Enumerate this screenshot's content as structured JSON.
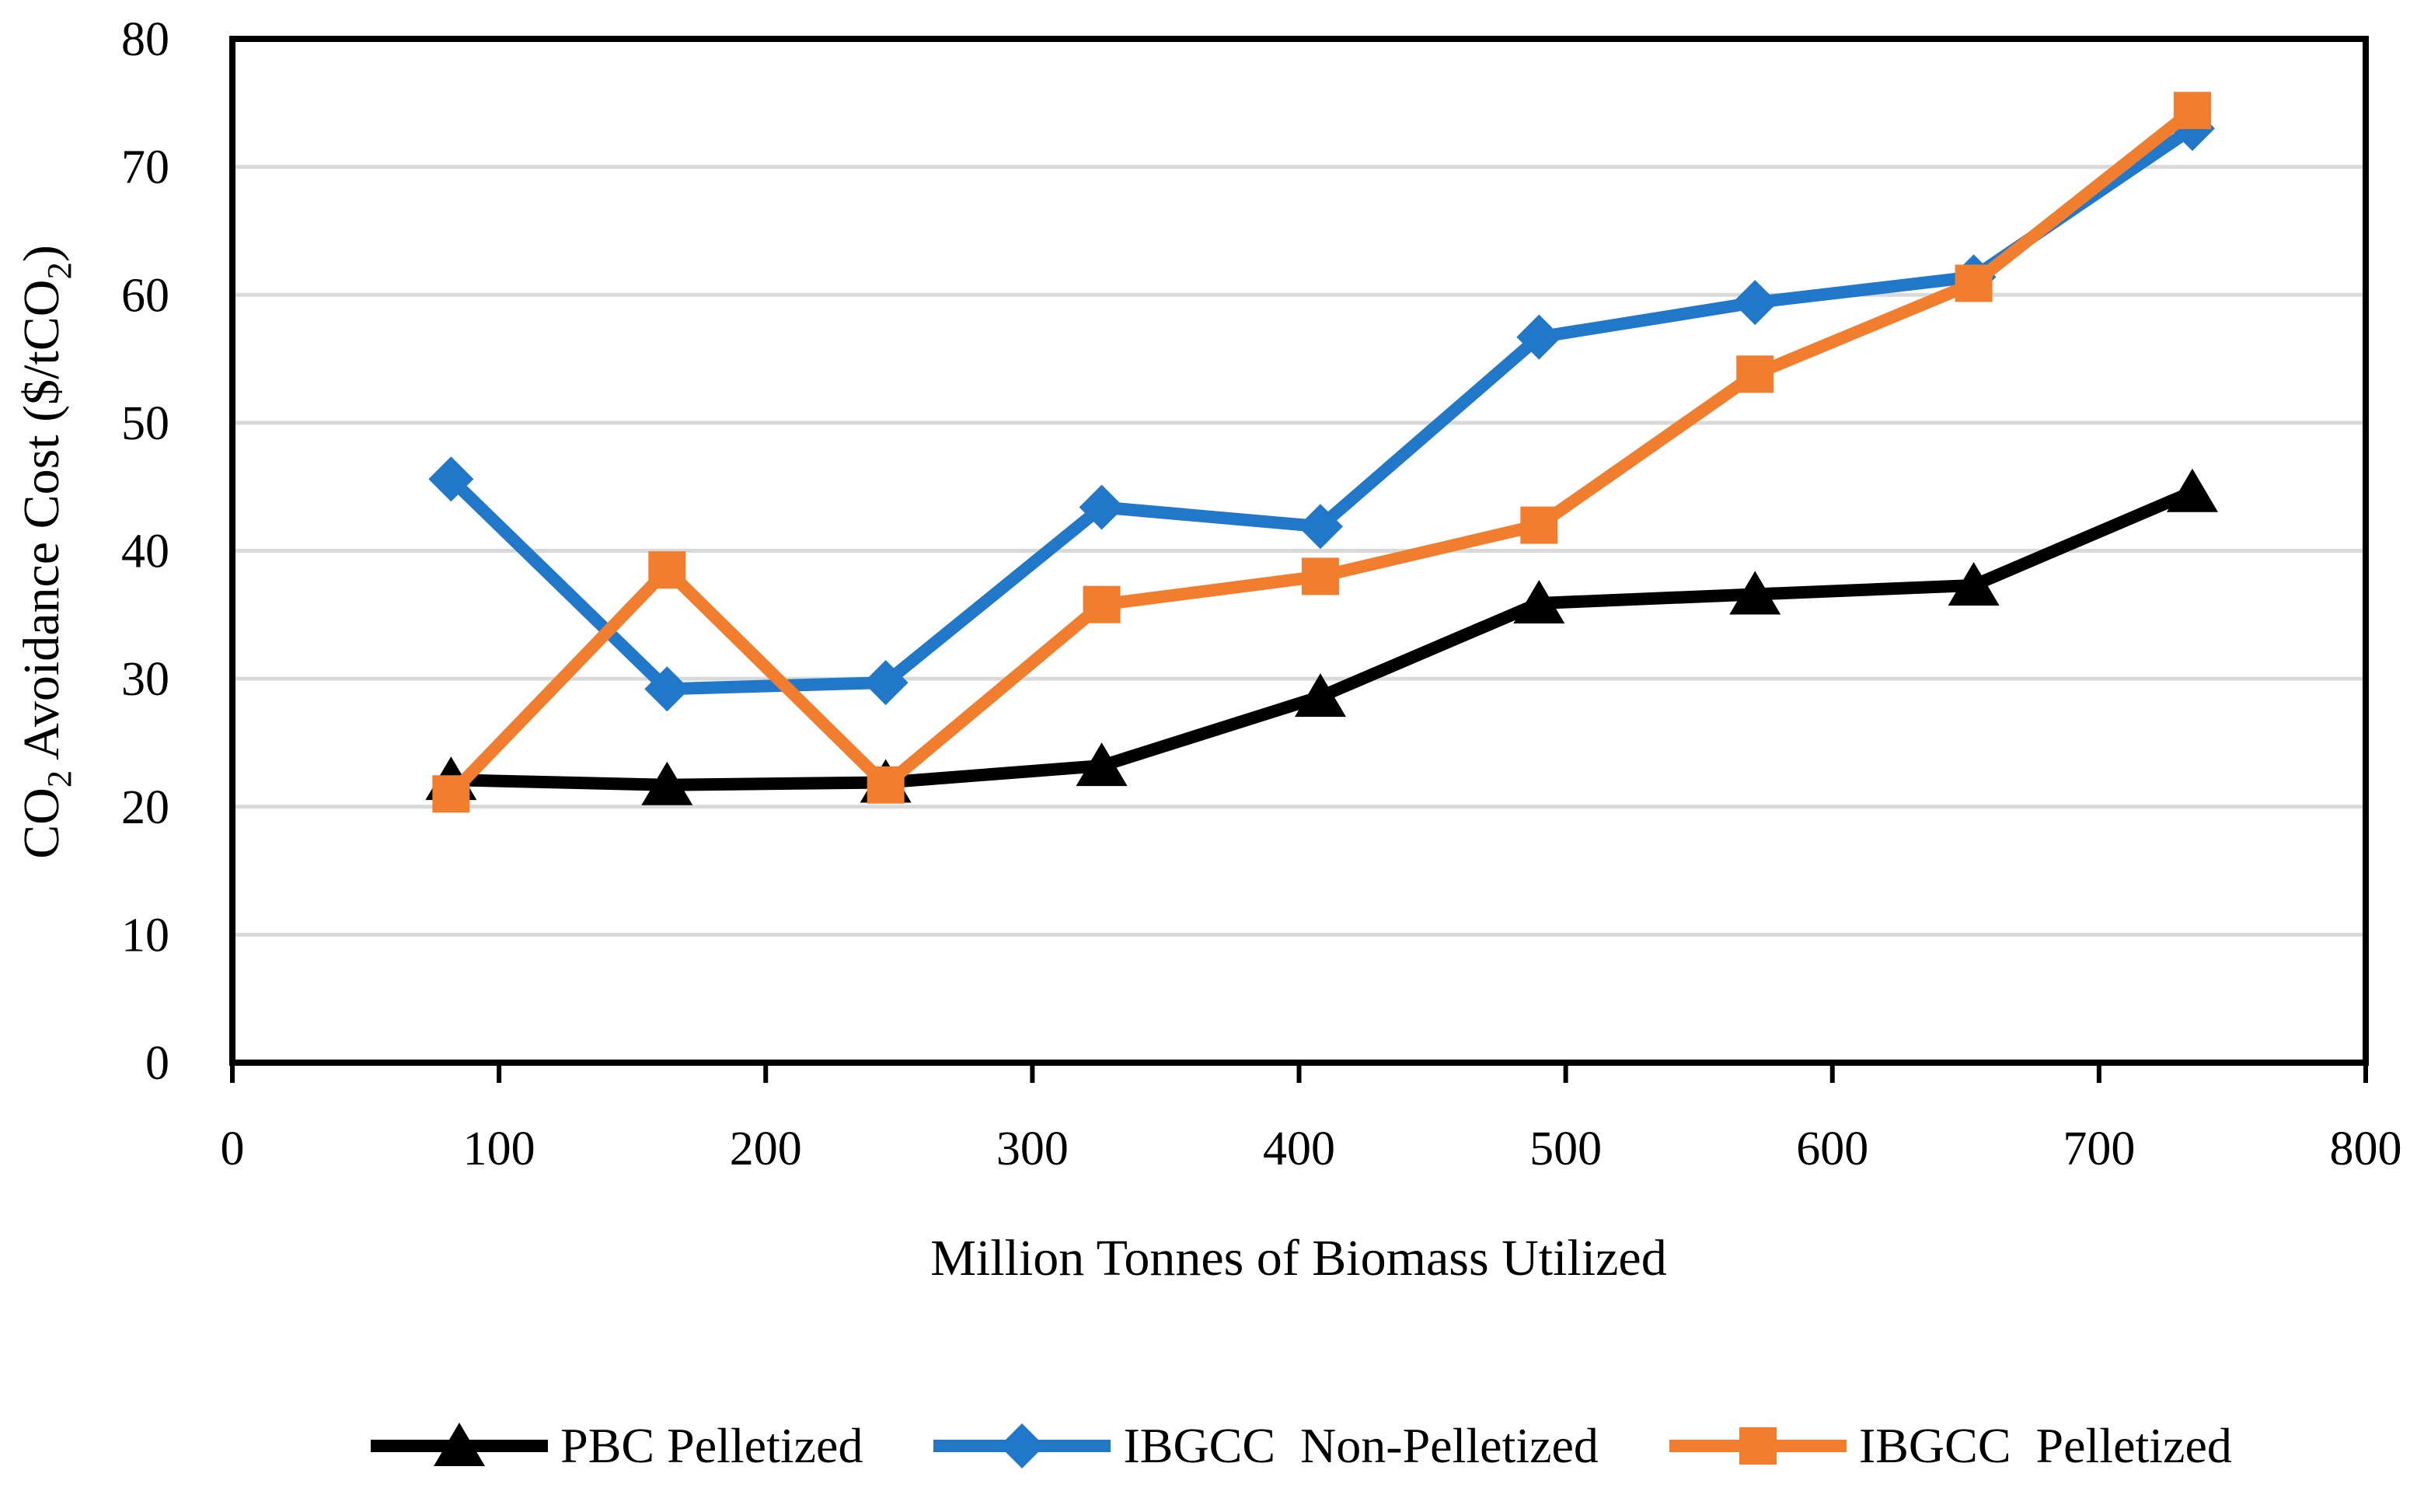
{
  "chart_data": {
    "type": "line",
    "xlabel": "Million Tonnes of Biomass Utilized",
    "ylabel": "CO2 Avoidance Cost ($/tCO2)",
    "ylabel_rich": [
      {
        "t": "CO"
      },
      {
        "t": "2",
        "sub": true
      },
      {
        "t": " Avoidance Cost ($/tCO"
      },
      {
        "t": "2",
        "sub": true
      },
      {
        "t": ")"
      }
    ],
    "xlim": [
      0,
      800
    ],
    "ylim": [
      0,
      80
    ],
    "x_ticks": [
      0,
      100,
      200,
      300,
      400,
      500,
      600,
      700,
      800
    ],
    "y_ticks": [
      0,
      10,
      20,
      30,
      40,
      50,
      60,
      70,
      80
    ],
    "grid": "horizontal",
    "gridline_color": "#D9D9D9",
    "axis_color": "#000000",
    "background_color": "#FFFFFF",
    "legend_position": "bottom",
    "x": [
      82,
      163,
      245,
      326,
      408,
      490,
      571,
      653,
      735
    ],
    "series": [
      {
        "name": "PBC Pelletized",
        "color": "#000000",
        "marker": "triangle",
        "values": [
          22.1,
          21.7,
          21.9,
          23.2,
          28.6,
          35.9,
          36.6,
          37.3,
          44.6
        ]
      },
      {
        "name": "IBGCC  Non-Pelletized",
        "color": "#2177C8",
        "marker": "diamond",
        "values": [
          45.6,
          29.2,
          29.7,
          43.4,
          41.9,
          56.7,
          59.4,
          61.4,
          73.0
        ]
      },
      {
        "name": "IBGCC  Pelletized",
        "color": "#F07E2E",
        "marker": "square",
        "values": [
          21.0,
          38.5,
          21.7,
          35.8,
          38.0,
          42.0,
          53.8,
          60.9,
          74.4
        ]
      }
    ]
  }
}
